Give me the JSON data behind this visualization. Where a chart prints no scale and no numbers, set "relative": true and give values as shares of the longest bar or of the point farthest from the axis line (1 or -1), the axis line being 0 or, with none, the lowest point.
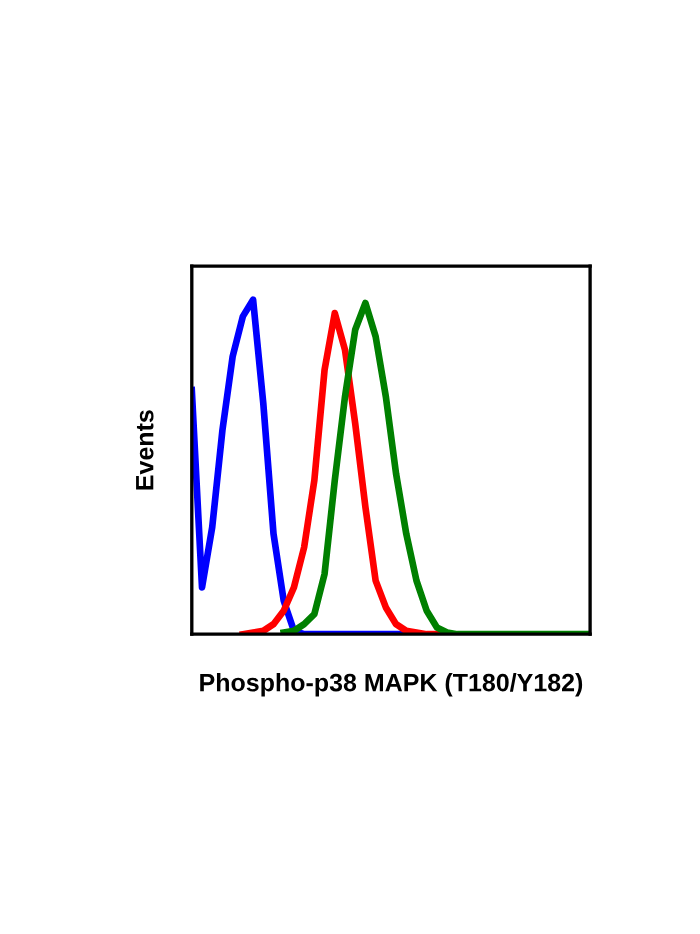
{
  "chart_data": {
    "type": "line",
    "relative": true,
    "xlabel": "Phospho-p38 MAPK (T180/Y182)",
    "ylabel": "Events",
    "grid": false,
    "legend": false,
    "tick_labels": false,
    "marker": "none",
    "line_style": "solid",
    "categories": [
      null,
      null,
      null,
      null,
      null,
      null,
      null,
      null,
      null,
      null,
      null,
      null,
      null,
      null,
      null,
      null,
      null,
      null,
      null,
      null,
      null,
      null,
      null,
      null,
      null,
      null,
      null,
      null,
      null,
      null,
      null,
      null,
      null,
      null,
      null,
      null,
      null,
      null,
      null,
      null
    ],
    "series": [
      {
        "color": "#0000ff",
        "values": [
          0.73,
          0.14,
          0.32,
          0.61,
          0.83,
          0.95,
          1,
          0.69,
          0.3,
          0.1,
          0.01,
          0,
          0,
          0,
          0,
          0,
          0,
          0,
          0,
          0,
          0,
          0,
          0,
          null,
          null,
          null,
          null,
          null,
          null,
          null,
          null,
          null,
          null,
          null,
          null,
          null,
          null,
          null,
          null,
          null
        ]
      },
      {
        "color": "#ff0000",
        "values": [
          null,
          null,
          null,
          null,
          null,
          0,
          0.005,
          0.01,
          0.03,
          0.07,
          0.14,
          0.26,
          0.46,
          0.79,
          0.96,
          0.85,
          0.63,
          0.38,
          0.16,
          0.08,
          0.03,
          0.01,
          0.005,
          0,
          0,
          0,
          null,
          null,
          null,
          null,
          null,
          null,
          null,
          null,
          null,
          null,
          null,
          null,
          null,
          null
        ]
      },
      {
        "color": "#008000",
        "values": [
          null,
          null,
          null,
          null,
          null,
          null,
          null,
          null,
          null,
          0.005,
          0.01,
          0.03,
          0.06,
          0.18,
          0.46,
          0.71,
          0.91,
          0.99,
          0.89,
          0.71,
          0.48,
          0.3,
          0.16,
          0.07,
          0.02,
          0.005,
          0,
          0,
          0,
          0,
          0,
          0,
          0,
          0,
          0,
          0,
          0,
          0,
          0,
          0
        ]
      }
    ]
  }
}
